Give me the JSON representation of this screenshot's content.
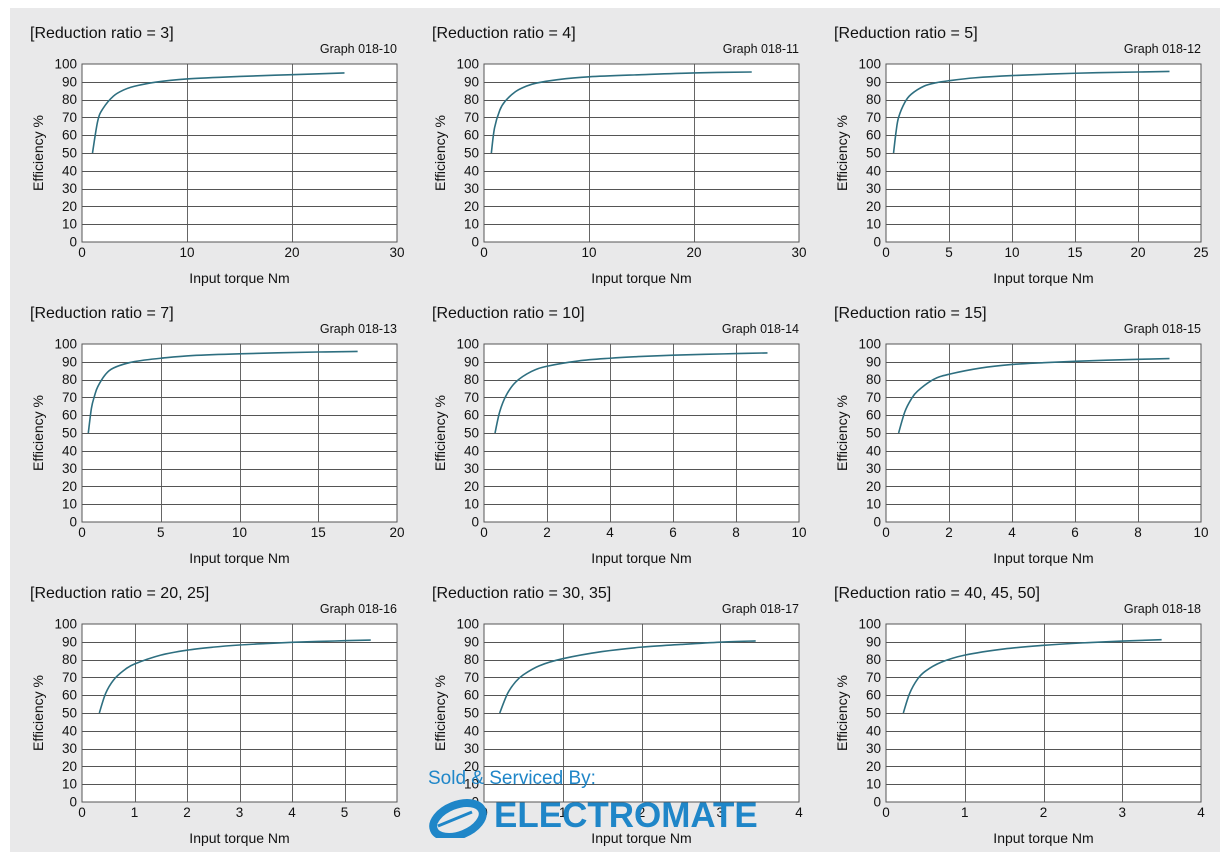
{
  "page": {
    "background": "#e9e9ea",
    "curve_color": "#2e6f80"
  },
  "watermark": {
    "sold_by": "Sold & Serviced By:",
    "company": "ELECTROMATE",
    "color": "#1f86c8"
  },
  "chart_data": [
    {
      "type": "line",
      "title": "[Reduction ratio = 3]",
      "graph_id": "Graph 018-10",
      "xlabel": "Input torque Nm",
      "ylabel": "Efficiency %",
      "xlim": [
        0,
        30
      ],
      "ylim": [
        0,
        100
      ],
      "xticks": [
        0,
        10,
        20,
        30
      ],
      "yticks": [
        0,
        10,
        20,
        30,
        40,
        50,
        60,
        70,
        80,
        90,
        100
      ],
      "grid": true,
      "series": [
        {
          "x": [
            1,
            1.5,
            2,
            3,
            4,
            5,
            7,
            10,
            15,
            20,
            25
          ],
          "y": [
            50,
            68,
            75,
            82,
            85.5,
            87.5,
            89.8,
            91.6,
            93,
            94,
            95
          ]
        }
      ]
    },
    {
      "type": "line",
      "title": "[Reduction ratio = 4]",
      "graph_id": "Graph 018-11",
      "xlabel": "Input torque Nm",
      "ylabel": "Efficiency %",
      "xlim": [
        0,
        30
      ],
      "ylim": [
        0,
        100
      ],
      "xticks": [
        0,
        10,
        20,
        30
      ],
      "yticks": [
        0,
        10,
        20,
        30,
        40,
        50,
        60,
        70,
        80,
        90,
        100
      ],
      "grid": true,
      "series": [
        {
          "x": [
            0.7,
            1,
            1.5,
            2,
            3,
            4,
            5,
            7,
            10,
            15,
            20,
            25.5
          ],
          "y": [
            50,
            64,
            74,
            79,
            84.5,
            87.5,
            89.3,
            91.2,
            92.8,
            94,
            95,
            95.5
          ]
        }
      ]
    },
    {
      "type": "line",
      "title": "[Reduction ratio = 5]",
      "graph_id": "Graph 018-12",
      "xlabel": "Input torque Nm",
      "ylabel": "Efficiency %",
      "xlim": [
        0,
        25
      ],
      "ylim": [
        0,
        100
      ],
      "xticks": [
        0,
        5,
        10,
        15,
        20,
        25
      ],
      "yticks": [
        0,
        10,
        20,
        30,
        40,
        50,
        60,
        70,
        80,
        90,
        100
      ],
      "grid": true,
      "series": [
        {
          "x": [
            0.6,
            0.8,
            1,
            1.5,
            2,
            3,
            4,
            5,
            7,
            10,
            15,
            20,
            22.5
          ],
          "y": [
            50,
            62,
            70,
            78.5,
            83,
            87.5,
            89.5,
            90.6,
            92.2,
            93.5,
            94.8,
            95.5,
            95.8
          ]
        }
      ]
    },
    {
      "type": "line",
      "title": "[Reduction ratio = 7]",
      "graph_id": "Graph 018-13",
      "xlabel": "Input torque Nm",
      "ylabel": "Efficiency %",
      "xlim": [
        0,
        20
      ],
      "ylim": [
        0,
        100
      ],
      "xticks": [
        0,
        5,
        10,
        15,
        20
      ],
      "yticks": [
        0,
        10,
        20,
        30,
        40,
        50,
        60,
        70,
        80,
        90,
        100
      ],
      "grid": true,
      "series": [
        {
          "x": [
            0.4,
            0.6,
            0.8,
            1,
            1.5,
            2,
            3,
            4,
            5,
            7,
            10,
            15,
            17.5
          ],
          "y": [
            50,
            64,
            71,
            76,
            83,
            86.5,
            89.5,
            91,
            92,
            93.5,
            94.5,
            95.5,
            95.8
          ]
        }
      ]
    },
    {
      "type": "line",
      "title": "[Reduction ratio = 10]",
      "graph_id": "Graph 018-14",
      "xlabel": "Input torque Nm",
      "ylabel": "Efficiency %",
      "xlim": [
        0,
        10
      ],
      "ylim": [
        0,
        100
      ],
      "xticks": [
        0,
        2,
        4,
        6,
        8,
        10
      ],
      "yticks": [
        0,
        10,
        20,
        30,
        40,
        50,
        60,
        70,
        80,
        90,
        100
      ],
      "grid": true,
      "series": [
        {
          "x": [
            0.35,
            0.5,
            0.7,
            1,
            1.5,
            2,
            3,
            4,
            5,
            6,
            7,
            8,
            9
          ],
          "y": [
            50,
            62,
            71,
            78.5,
            84.5,
            87.5,
            90.5,
            92,
            93,
            93.7,
            94.2,
            94.6,
            95
          ]
        }
      ]
    },
    {
      "type": "line",
      "title": "[Reduction ratio = 15]",
      "graph_id": "Graph 018-15",
      "xlabel": "Input torque Nm",
      "ylabel": "Efficiency %",
      "xlim": [
        0,
        10
      ],
      "ylim": [
        0,
        100
      ],
      "xticks": [
        0,
        2,
        4,
        6,
        8,
        10
      ],
      "yticks": [
        0,
        10,
        20,
        30,
        40,
        50,
        60,
        70,
        80,
        90,
        100
      ],
      "grid": true,
      "series": [
        {
          "x": [
            0.4,
            0.6,
            0.8,
            1,
            1.5,
            2,
            3,
            4,
            5,
            6,
            7,
            8,
            9
          ],
          "y": [
            50,
            62,
            69,
            73.5,
            80,
            83,
            86.5,
            88.5,
            89.5,
            90.3,
            90.9,
            91.4,
            91.8
          ]
        }
      ]
    },
    {
      "type": "line",
      "title": "[Reduction ratio = 20, 25]",
      "graph_id": "Graph 018-16",
      "xlabel": "Input torque Nm",
      "ylabel": "Efficiency %",
      "xlim": [
        0,
        6
      ],
      "ylim": [
        0,
        100
      ],
      "xticks": [
        0,
        1,
        2,
        3,
        4,
        5,
        6
      ],
      "yticks": [
        0,
        10,
        20,
        30,
        40,
        50,
        60,
        70,
        80,
        90,
        100
      ],
      "grid": true,
      "series": [
        {
          "x": [
            0.33,
            0.45,
            0.6,
            0.8,
            1,
            1.5,
            2,
            2.5,
            3,
            3.5,
            4,
            4.5,
            5,
            5.5
          ],
          "y": [
            50,
            61,
            68.5,
            74,
            77.5,
            82.5,
            85.3,
            87,
            88.2,
            89,
            89.7,
            90.2,
            90.6,
            91
          ]
        }
      ]
    },
    {
      "type": "line",
      "title": "[Reduction ratio = 30, 35]",
      "graph_id": "Graph 018-17",
      "xlabel": "Input torque Nm",
      "ylabel": "Efficiency %",
      "xlim": [
        0,
        4
      ],
      "ylim": [
        0,
        100
      ],
      "xticks": [
        0,
        1,
        2,
        3,
        4
      ],
      "yticks": [
        0,
        10,
        20,
        30,
        40,
        50,
        60,
        70,
        80,
        90,
        100
      ],
      "grid": true,
      "series": [
        {
          "x": [
            0.2,
            0.3,
            0.4,
            0.5,
            0.7,
            1,
            1.5,
            2,
            2.5,
            3,
            3.45
          ],
          "y": [
            50,
            61,
            67.5,
            71.5,
            76.5,
            80.5,
            84.5,
            87,
            88.5,
            89.8,
            90.5
          ]
        }
      ]
    },
    {
      "type": "line",
      "title": "[Reduction ratio = 40, 45, 50]",
      "graph_id": "Graph 018-18",
      "xlabel": "Input torque Nm",
      "ylabel": "Efficiency %",
      "xlim": [
        0,
        4
      ],
      "ylim": [
        0,
        100
      ],
      "xticks": [
        0,
        1,
        2,
        3,
        4
      ],
      "yticks": [
        0,
        10,
        20,
        30,
        40,
        50,
        60,
        70,
        80,
        90,
        100
      ],
      "grid": true,
      "series": [
        {
          "x": [
            0.22,
            0.3,
            0.4,
            0.5,
            0.7,
            1,
            1.5,
            2,
            2.5,
            3,
            3.5
          ],
          "y": [
            50,
            61,
            69,
            73.5,
            78.5,
            82.5,
            86,
            88,
            89.4,
            90.4,
            91.2
          ]
        }
      ]
    }
  ]
}
